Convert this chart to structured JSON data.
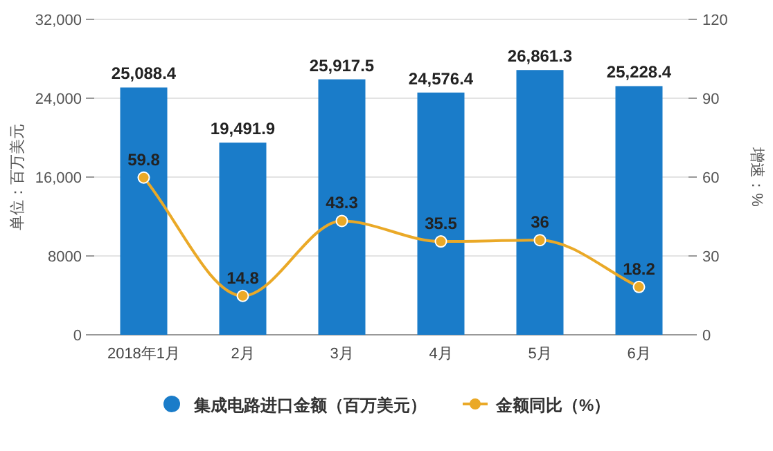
{
  "chart_data": {
    "type": "bar",
    "categories": [
      "2018年1月",
      "2月",
      "3月",
      "4月",
      "5月",
      "6月"
    ],
    "ylabel": "单位：百万美元",
    "y2label": "增速：%",
    "ylim": [
      0,
      32000
    ],
    "yticks": [
      0,
      {
        "value": 8000,
        "label": "8000"
      },
      {
        "value": 16000,
        "label": "16,000"
      },
      {
        "value": 24000,
        "label": "24,000"
      },
      {
        "value": 32000,
        "label": "32,000"
      }
    ],
    "y2lim": [
      0,
      120
    ],
    "y2ticks": [
      0,
      30,
      60,
      90,
      120
    ],
    "grid": "y",
    "legend": "bottom",
    "data_labels": true,
    "marker": "circle",
    "series": [
      {
        "name": "集成电路进口金额（百万美元）",
        "color": "#1a7cc9",
        "values": [
          25088.4,
          19491.9,
          25917.5,
          24576.4,
          26861.3,
          25228.4
        ],
        "value_labels": [
          "25,088.4",
          "19,491.9",
          "25,917.5",
          "24,576.4",
          "26,861.3",
          "25,228.4"
        ]
      },
      {
        "name": "金额同比（%）",
        "type": "line",
        "axis": "y2",
        "color": "#eaa927",
        "values": [
          59.8,
          14.8,
          43.3,
          35.5,
          36,
          18.2
        ]
      }
    ]
  }
}
